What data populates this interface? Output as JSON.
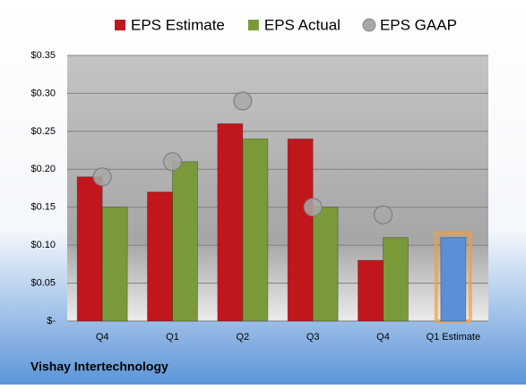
{
  "chart_data": {
    "type": "bar",
    "title": "Vishay Intertechnology",
    "categories": [
      "Q4",
      "Q1",
      "Q2",
      "Q3",
      "Q4",
      "Q1 Estimate"
    ],
    "series": [
      {
        "name": "EPS Estimate",
        "color": "#c0171c",
        "values": [
          0.19,
          0.17,
          0.26,
          0.24,
          0.08,
          0.11
        ],
        "highlight_color": "#5b8fd6"
      },
      {
        "name": "EPS Actual",
        "color": "#7a9a3a",
        "values": [
          0.15,
          0.21,
          0.24,
          0.15,
          0.11,
          null
        ]
      },
      {
        "name": "EPS GAAP",
        "color": "#a8a8a8",
        "type": "bubble",
        "values": [
          0.19,
          0.21,
          0.29,
          0.15,
          0.14,
          null
        ]
      }
    ],
    "ylim": [
      0,
      0.35
    ],
    "yticks": [
      {
        "value": 0,
        "label": "$-"
      },
      {
        "value": 0.05,
        "label": "$0.05"
      },
      {
        "value": 0.1,
        "label": "$0.10"
      },
      {
        "value": 0.15,
        "label": "$0.15"
      },
      {
        "value": 0.2,
        "label": "$0.20"
      },
      {
        "value": 0.25,
        "label": "$0.25"
      },
      {
        "value": 0.3,
        "label": "$0.30"
      },
      {
        "value": 0.35,
        "label": "$0.35"
      }
    ],
    "grid": true
  }
}
